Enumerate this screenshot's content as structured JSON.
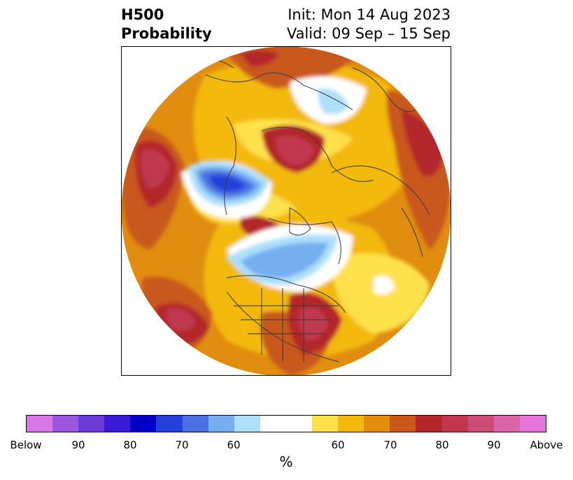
{
  "title": {
    "left_line1": "H500",
    "left_line2": "Probability",
    "right_line1": "Init: Mon 14 Aug 2023",
    "right_line2": "Valid: 09 Sep – 15 Sep"
  },
  "colorbar": {
    "unit": "%",
    "colors": [
      "#d877e8",
      "#9b55de",
      "#6a3bd6",
      "#3a1ad6",
      "#0000c8",
      "#2440d8",
      "#4a70e2",
      "#76aff0",
      "#ade0fb",
      "#ffffff",
      "#fee14b",
      "#f3b90d",
      "#e08d10",
      "#c9581a",
      "#b3262a",
      "#c0374e",
      "#cc4c78",
      "#d964a8",
      "#e574dc"
    ],
    "tick_labels": [
      "Below",
      "90",
      "80",
      "70",
      "60",
      "60",
      "70",
      "80",
      "90",
      "Above"
    ]
  }
}
